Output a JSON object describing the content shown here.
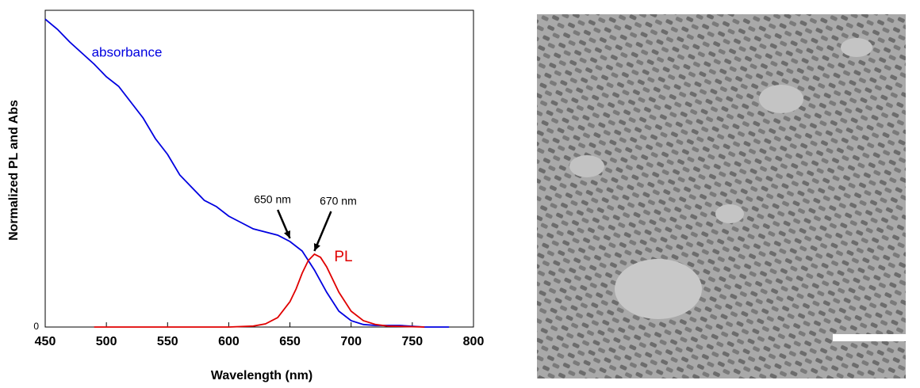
{
  "chart_data": {
    "type": "line",
    "x_label": "Wavelength (nm)",
    "y_label": "Normalized PL and Abs",
    "xlim": [
      450,
      800
    ],
    "xticks": [
      450,
      500,
      550,
      600,
      650,
      700,
      750,
      800
    ],
    "ylim": [
      0,
      1
    ],
    "yticks": [
      0
    ],
    "series": [
      {
        "name": "absorbance",
        "color": "#0000e0",
        "x": [
          450,
          460,
          470,
          480,
          490,
          500,
          510,
          520,
          530,
          540,
          550,
          560,
          570,
          580,
          590,
          600,
          610,
          620,
          630,
          640,
          650,
          660,
          670,
          680,
          690,
          700,
          710,
          720,
          740,
          760,
          780
        ],
        "values": [
          0.972,
          0.94,
          0.9,
          0.865,
          0.83,
          0.79,
          0.76,
          0.71,
          0.66,
          0.595,
          0.545,
          0.48,
          0.44,
          0.4,
          0.38,
          0.35,
          0.33,
          0.31,
          0.3,
          0.29,
          0.27,
          0.24,
          0.18,
          0.11,
          0.05,
          0.02,
          0.008,
          0.005,
          0.005,
          0,
          0
        ]
      },
      {
        "name": "PL",
        "color": "#e00000",
        "x": [
          490,
          600,
          620,
          630,
          640,
          650,
          655,
          660,
          665,
          670,
          675,
          680,
          690,
          700,
          710,
          720,
          730,
          740,
          760
        ],
        "values": [
          0,
          0,
          0.003,
          0.01,
          0.03,
          0.08,
          0.12,
          0.17,
          0.21,
          0.23,
          0.22,
          0.19,
          0.11,
          0.05,
          0.02,
          0.008,
          0.003,
          0.002,
          0
        ]
      }
    ],
    "annotations": [
      {
        "text": "650 nm",
        "x": 650,
        "y": 0.27
      },
      {
        "text": "670 nm",
        "x": 670,
        "y": 0.23
      }
    ]
  }
}
